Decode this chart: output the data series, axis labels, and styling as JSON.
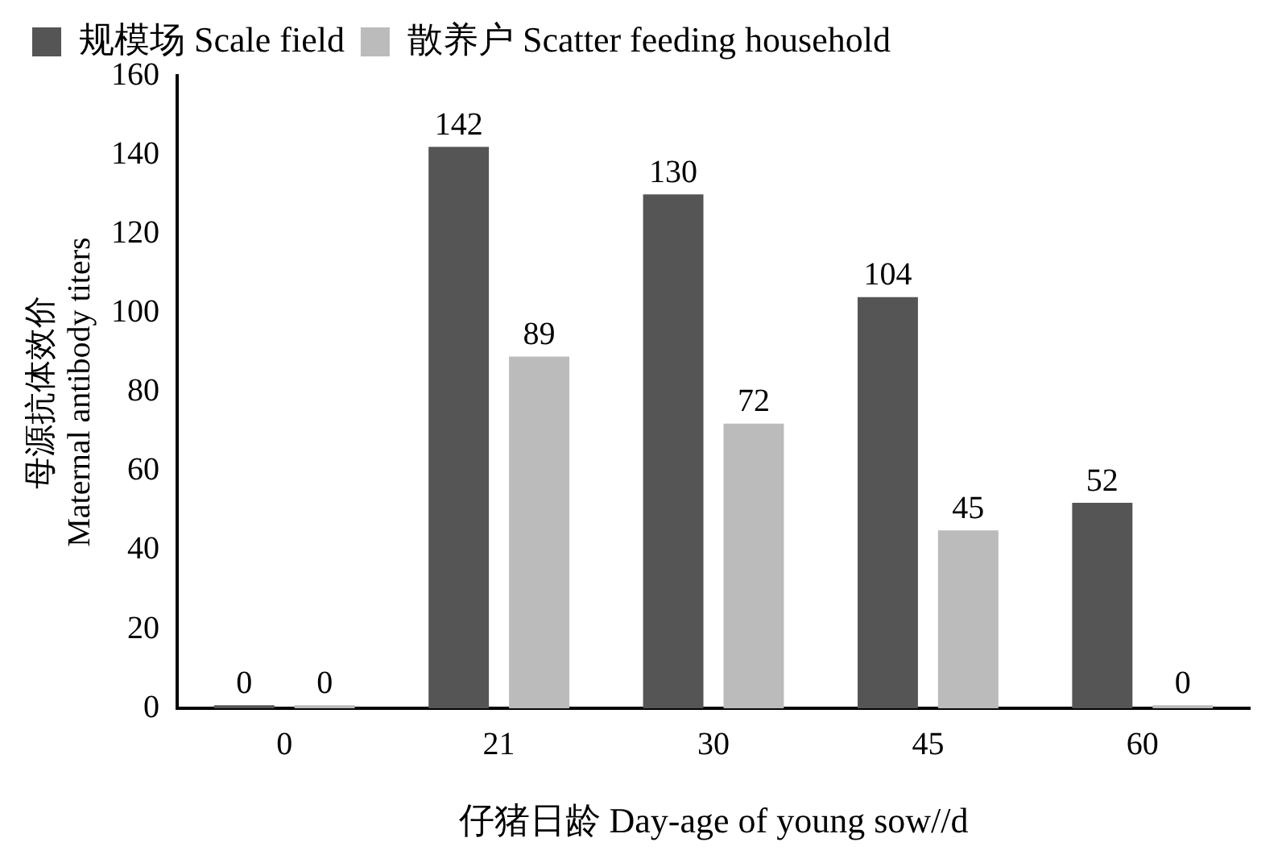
{
  "chart_data": {
    "type": "bar",
    "xlabel": "仔猪日龄 Day-age of young sow//d",
    "ylabel": "母源抗体效价\nMaternal antibody titers",
    "categories": [
      "0",
      "21",
      "30",
      "45",
      "60"
    ],
    "series": [
      {
        "name": "规模场 Scale field",
        "color": "#555555",
        "values": [
          0,
          142,
          130,
          104,
          52
        ]
      },
      {
        "name": "散养户 Scatter feeding household",
        "color": "#bbbbbb",
        "values": [
          0,
          89,
          72,
          45,
          0
        ]
      }
    ],
    "ylim": [
      0,
      160
    ],
    "yticks": [
      0,
      20,
      40,
      60,
      80,
      100,
      120,
      140,
      160
    ],
    "grid": false,
    "legend": "top",
    "data_labels": true
  }
}
